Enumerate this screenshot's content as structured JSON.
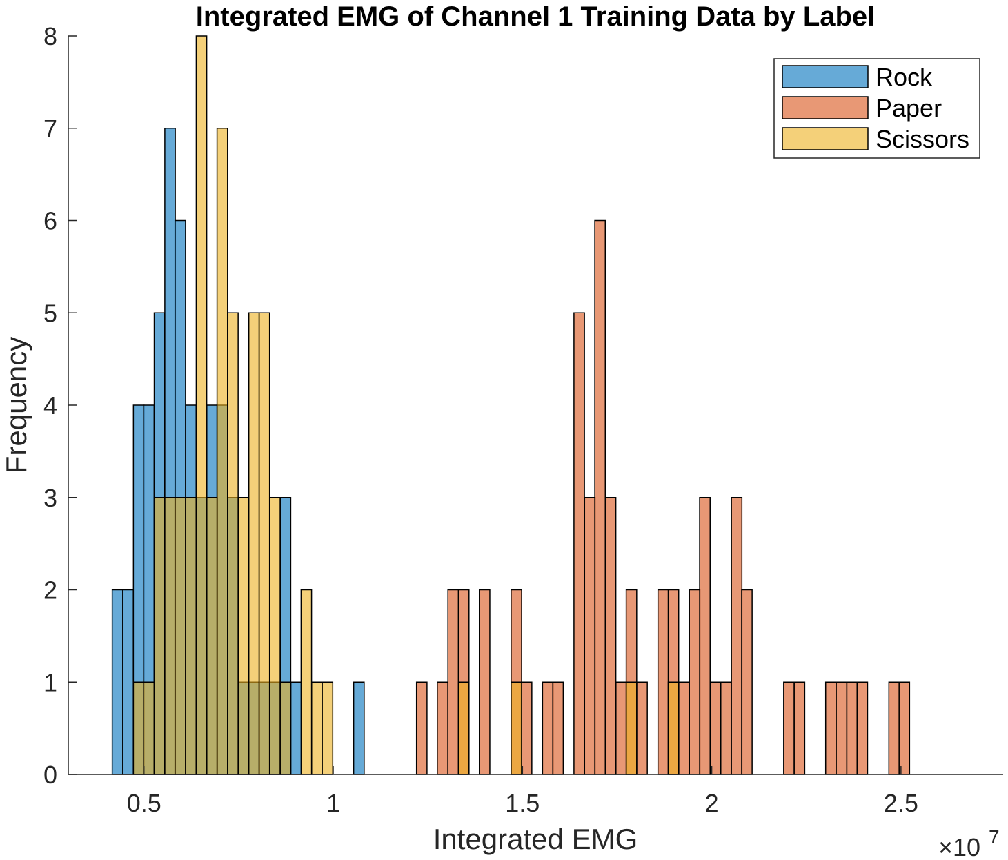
{
  "chart_data": {
    "type": "bar",
    "subtype": "overlapping-histogram",
    "title": "Integrated EMG of Channel 1 Training Data by Label",
    "xlabel": "Integrated EMG",
    "ylabel": "Frequency",
    "x_multiplier_label": "×10",
    "x_multiplier_exponent": "7",
    "xlim": [
      0.3,
      2.77
    ],
    "ylim": [
      0,
      8
    ],
    "xticks": [
      0.5,
      1,
      1.5,
      2,
      2.5
    ],
    "xtick_labels": [
      "0.5",
      "1",
      "1.5",
      "2",
      "2.5"
    ],
    "yticks": [
      0,
      1,
      2,
      3,
      4,
      5,
      6,
      7,
      8
    ],
    "ytick_labels": [
      "0",
      "1",
      "2",
      "3",
      "4",
      "5",
      "6",
      "7",
      "8"
    ],
    "bin_width": 0.0277,
    "grid": false,
    "legend": "top-right",
    "series": [
      {
        "name": "Rock",
        "color": "#0072BD",
        "bins": [
          {
            "x0": 0.416,
            "h": 2
          },
          {
            "x0": 0.444,
            "h": 2
          },
          {
            "x0": 0.472,
            "h": 4
          },
          {
            "x0": 0.499,
            "h": 4
          },
          {
            "x0": 0.527,
            "h": 5
          },
          {
            "x0": 0.555,
            "h": 7
          },
          {
            "x0": 0.582,
            "h": 6
          },
          {
            "x0": 0.61,
            "h": 4
          },
          {
            "x0": 0.638,
            "h": 3
          },
          {
            "x0": 0.666,
            "h": 4
          },
          {
            "x0": 0.693,
            "h": 4
          },
          {
            "x0": 0.721,
            "h": 3
          },
          {
            "x0": 0.749,
            "h": 1
          },
          {
            "x0": 0.777,
            "h": 1
          },
          {
            "x0": 0.804,
            "h": 1
          },
          {
            "x0": 0.832,
            "h": 1
          },
          {
            "x0": 0.86,
            "h": 3
          },
          {
            "x0": 0.888,
            "h": 1
          },
          {
            "x0": 1.054,
            "h": 1
          }
        ]
      },
      {
        "name": "Paper",
        "color": "#D95319",
        "bins": [
          {
            "x0": 1.22,
            "h": 1
          },
          {
            "x0": 1.275,
            "h": 1
          },
          {
            "x0": 1.303,
            "h": 2
          },
          {
            "x0": 1.331,
            "h": 2
          },
          {
            "x0": 1.386,
            "h": 2
          },
          {
            "x0": 1.47,
            "h": 2
          },
          {
            "x0": 1.497,
            "h": 1
          },
          {
            "x0": 1.553,
            "h": 1
          },
          {
            "x0": 1.58,
            "h": 1
          },
          {
            "x0": 1.636,
            "h": 5
          },
          {
            "x0": 1.664,
            "h": 3
          },
          {
            "x0": 1.691,
            "h": 6
          },
          {
            "x0": 1.719,
            "h": 3
          },
          {
            "x0": 1.747,
            "h": 1
          },
          {
            "x0": 1.774,
            "h": 2
          },
          {
            "x0": 1.802,
            "h": 1
          },
          {
            "x0": 1.858,
            "h": 2
          },
          {
            "x0": 1.885,
            "h": 2
          },
          {
            "x0": 1.913,
            "h": 1
          },
          {
            "x0": 1.941,
            "h": 2
          },
          {
            "x0": 1.968,
            "h": 3
          },
          {
            "x0": 1.996,
            "h": 1
          },
          {
            "x0": 2.024,
            "h": 1
          },
          {
            "x0": 2.052,
            "h": 3
          },
          {
            "x0": 2.079,
            "h": 2
          },
          {
            "x0": 2.19,
            "h": 1
          },
          {
            "x0": 2.218,
            "h": 1
          },
          {
            "x0": 2.301,
            "h": 1
          },
          {
            "x0": 2.329,
            "h": 1
          },
          {
            "x0": 2.357,
            "h": 1
          },
          {
            "x0": 2.384,
            "h": 1
          },
          {
            "x0": 2.468,
            "h": 1
          },
          {
            "x0": 2.495,
            "h": 1
          }
        ]
      },
      {
        "name": "Scissors",
        "color": "#EDB120",
        "bins": [
          {
            "x0": 0.472,
            "h": 1
          },
          {
            "x0": 0.499,
            "h": 1
          },
          {
            "x0": 0.527,
            "h": 3
          },
          {
            "x0": 0.555,
            "h": 3
          },
          {
            "x0": 0.582,
            "h": 3
          },
          {
            "x0": 0.61,
            "h": 3
          },
          {
            "x0": 0.638,
            "h": 8
          },
          {
            "x0": 0.666,
            "h": 3
          },
          {
            "x0": 0.693,
            "h": 7
          },
          {
            "x0": 0.721,
            "h": 5
          },
          {
            "x0": 0.749,
            "h": 3
          },
          {
            "x0": 0.777,
            "h": 5
          },
          {
            "x0": 0.804,
            "h": 5
          },
          {
            "x0": 0.832,
            "h": 3
          },
          {
            "x0": 0.86,
            "h": 1
          },
          {
            "x0": 0.915,
            "h": 2
          },
          {
            "x0": 0.943,
            "h": 1
          },
          {
            "x0": 0.971,
            "h": 1
          },
          {
            "x0": 1.331,
            "h": 1
          },
          {
            "x0": 1.47,
            "h": 1
          },
          {
            "x0": 1.774,
            "h": 1
          },
          {
            "x0": 1.885,
            "h": 1
          }
        ]
      }
    ]
  }
}
